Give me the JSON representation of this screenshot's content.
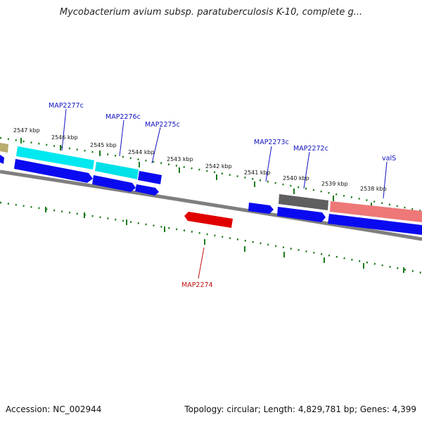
{
  "title": "Mycobacterium avium subsp. paratuberculosis K-10, complete g...",
  "footer": {
    "accession": "Accession: NC_002944",
    "info": "Topology: circular; Length: 4,829,781 bp; Genes: 4,399"
  },
  "colors": {
    "gene_cds": "#0a0af0",
    "gene_highlight": "#e00000",
    "label_default": "#1010c0",
    "label_highlight": "#c01010",
    "backbone": "#808080",
    "tick": "#1a7a1a"
  },
  "scale": [
    {
      "label": "2547 kbp"
    },
    {
      "label": "2546 kbp"
    },
    {
      "label": "2545 kbp"
    },
    {
      "label": "2544 kbp"
    },
    {
      "label": "2543 kbp"
    },
    {
      "label": "2542 kbp"
    },
    {
      "label": "2541 kbp"
    },
    {
      "label": "2540 kbp"
    },
    {
      "label": "2539 kbp"
    },
    {
      "label": "2538 kbp"
    }
  ],
  "genes": [
    {
      "name": "MAP2277c"
    },
    {
      "name": "MAP2276c"
    },
    {
      "name": "MAP2275c"
    },
    {
      "name": "MAP2273c"
    },
    {
      "name": "MAP2272c"
    },
    {
      "name": "valS"
    },
    {
      "name": "MAP2274"
    }
  ]
}
